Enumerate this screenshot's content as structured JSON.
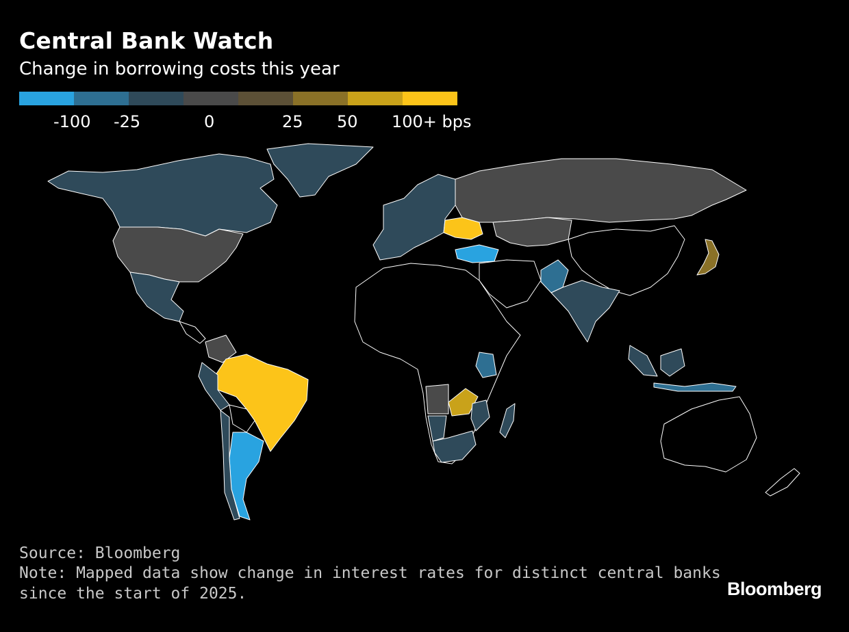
{
  "title": "Central Bank Watch",
  "subtitle": "Change in borrowing costs this year",
  "legend": {
    "colors": [
      "#29a3e0",
      "#2e6f92",
      "#2f4a5a",
      "#4a4a4a",
      "#5c5036",
      "#8a7127",
      "#c9a21a",
      "#fcc419"
    ],
    "ticks": [
      "-100",
      "-25",
      "0",
      "25",
      "50",
      "100+ bps"
    ]
  },
  "map": {
    "no_data_color": "#000000",
    "border_color": "#ffffff",
    "regions": [
      {
        "name": "Canada",
        "category": "-25 to 0"
      },
      {
        "name": "Greenland",
        "category": "-25 to 0"
      },
      {
        "name": "United States",
        "category": "0"
      },
      {
        "name": "Mexico",
        "category": "-25 to 0"
      },
      {
        "name": "Brazil",
        "category": "100+ bps"
      },
      {
        "name": "Argentina",
        "category": "-100"
      },
      {
        "name": "Colombia",
        "category": "0"
      },
      {
        "name": "Peru",
        "category": "-25 to 0"
      },
      {
        "name": "Chile",
        "category": "-25 to 0"
      },
      {
        "name": "Russia",
        "category": "0"
      },
      {
        "name": "Ukraine",
        "category": "100+ bps"
      },
      {
        "name": "Turkey",
        "category": "-100"
      },
      {
        "name": "Europe",
        "category": "-25 to 0"
      },
      {
        "name": "China",
        "category": "no data"
      },
      {
        "name": "Kazakhstan",
        "category": "0"
      },
      {
        "name": "Japan",
        "category": "25 to 50"
      },
      {
        "name": "India",
        "category": "-25 to 0"
      },
      {
        "name": "Pakistan",
        "category": "-25"
      },
      {
        "name": "Indonesia",
        "category": "-25"
      },
      {
        "name": "Zambia",
        "category": "50 to 100"
      },
      {
        "name": "Kenya",
        "category": "-25"
      },
      {
        "name": "South Africa",
        "category": "-25 to 0"
      },
      {
        "name": "Madagascar",
        "category": "-25 to 0"
      },
      {
        "name": "Australia",
        "category": "no data"
      }
    ]
  },
  "footer": {
    "source": "Source: Bloomberg",
    "note_line1": "Note: Mapped data show change in interest rates for distinct central banks",
    "note_line2": "since the start of 2025.",
    "brand": "Bloomberg"
  }
}
